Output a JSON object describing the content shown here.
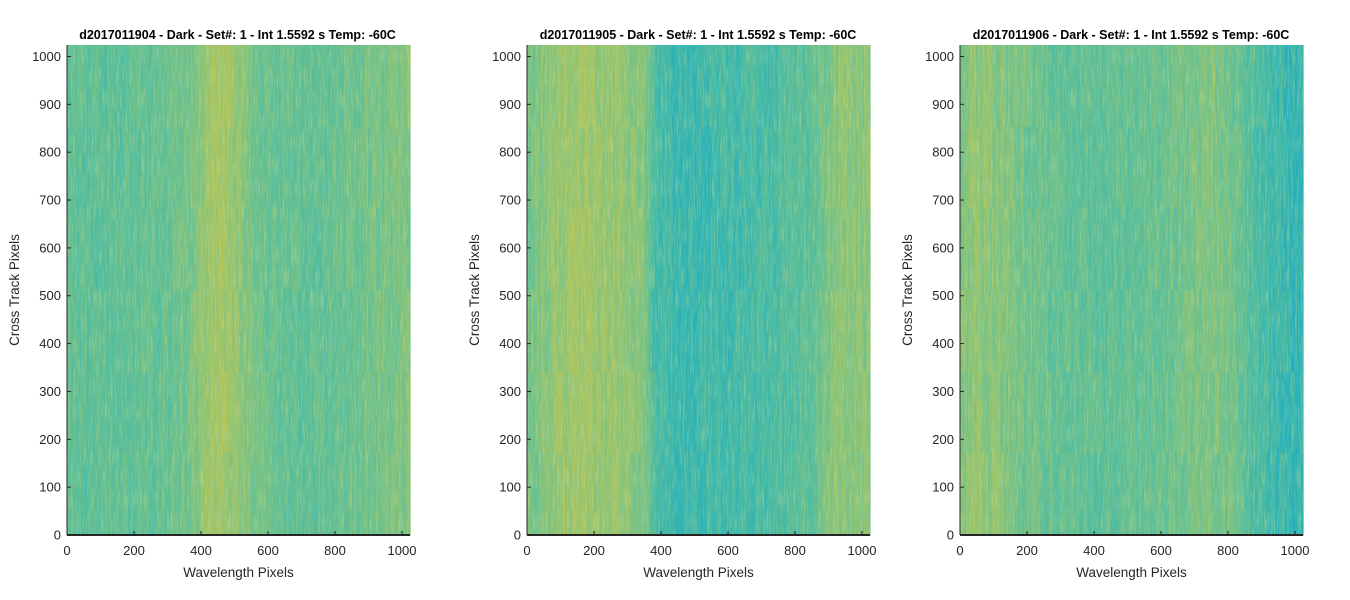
{
  "colors": {
    "colormap": [
      "#21a6c7",
      "#2ab1b6",
      "#4dbb9f",
      "#6ec08a",
      "#9ac46a",
      "#c1c24c",
      "#d7c13c"
    ],
    "axis": "#262626"
  },
  "chart_data": [
    {
      "type": "heatmap",
      "title": "d2017011904 - Dark - Set#: 1 - Int 1.5592 s Temp: -60C",
      "xlabel": "Wavelength Pixels",
      "ylabel": "Cross Track Pixels",
      "xlim": [
        0,
        1024
      ],
      "ylim": [
        0,
        1024
      ],
      "xticks": [
        0,
        200,
        400,
        600,
        800,
        1000
      ],
      "yticks": [
        0,
        100,
        200,
        300,
        400,
        500,
        600,
        700,
        800,
        900,
        1000
      ],
      "column_profile": {
        "x": [
          0,
          100,
          200,
          300,
          350,
          400,
          450,
          500,
          550,
          600,
          700,
          800,
          900,
          1000,
          1024
        ],
        "level": [
          0.42,
          0.4,
          0.42,
          0.44,
          0.5,
          0.62,
          0.72,
          0.66,
          0.52,
          0.45,
          0.42,
          0.45,
          0.5,
          0.55,
          0.56
        ]
      }
    },
    {
      "type": "heatmap",
      "title": "d2017011905 - Dark - Set#: 1 - Int 1.5592 s Temp: -60C",
      "xlabel": "Wavelength Pixels",
      "ylabel": "Cross Track Pixels",
      "xlim": [
        0,
        1024
      ],
      "ylim": [
        0,
        1024
      ],
      "xticks": [
        0,
        200,
        400,
        600,
        800,
        1000
      ],
      "yticks": [
        0,
        100,
        200,
        300,
        400,
        500,
        600,
        700,
        800,
        900,
        1000
      ],
      "column_profile": {
        "x": [
          0,
          50,
          100,
          150,
          200,
          300,
          350,
          380,
          450,
          550,
          650,
          750,
          850,
          900,
          950,
          1024
        ],
        "level": [
          0.52,
          0.58,
          0.66,
          0.7,
          0.68,
          0.62,
          0.56,
          0.3,
          0.22,
          0.25,
          0.28,
          0.32,
          0.4,
          0.56,
          0.62,
          0.58
        ]
      }
    },
    {
      "type": "heatmap",
      "title": "d2017011906 - Dark - Set#: 1 - Int 1.5592 s Temp: -60C",
      "xlabel": "Wavelength Pixels",
      "ylabel": "Cross Track Pixels",
      "xlim": [
        0,
        1024
      ],
      "ylim": [
        0,
        1024
      ],
      "xticks": [
        0,
        200,
        400,
        600,
        800,
        1000
      ],
      "yticks": [
        0,
        100,
        200,
        300,
        400,
        500,
        600,
        700,
        800,
        900,
        1000
      ],
      "column_profile": {
        "x": [
          0,
          50,
          100,
          200,
          300,
          400,
          500,
          600,
          700,
          750,
          800,
          850,
          900,
          1000,
          1024
        ],
        "level": [
          0.58,
          0.62,
          0.6,
          0.5,
          0.42,
          0.4,
          0.42,
          0.45,
          0.52,
          0.56,
          0.52,
          0.4,
          0.28,
          0.2,
          0.2
        ]
      }
    }
  ]
}
